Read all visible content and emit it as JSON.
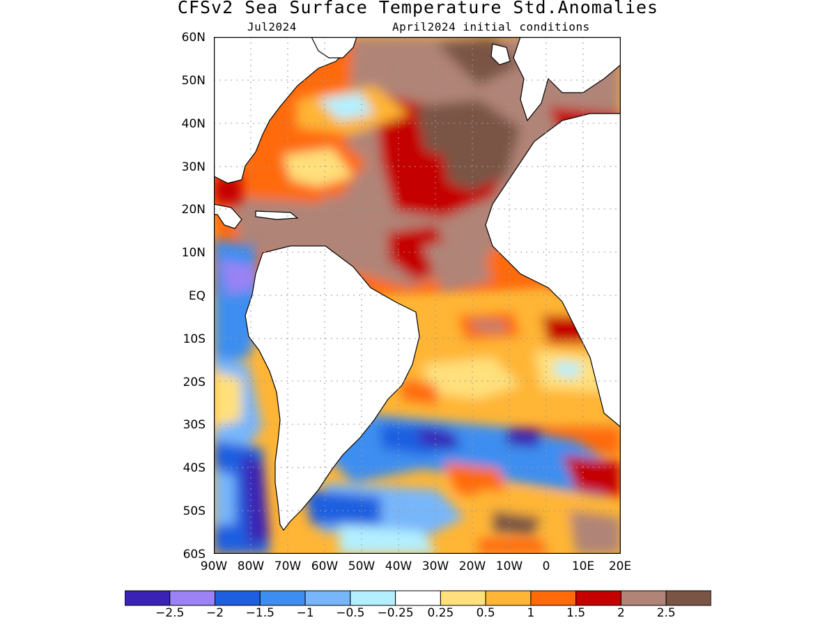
{
  "header": {
    "title": "CFSv2 Sea Surface Temperature Std.Anomalies",
    "valid_month": "Jul2024",
    "initial_conditions": "April2024 initial conditions"
  },
  "axes": {
    "lat_labels": [
      "60N",
      "50N",
      "40N",
      "30N",
      "20N",
      "10N",
      "EQ",
      "10S",
      "20S",
      "30S",
      "40S",
      "50S",
      "60S"
    ],
    "lon_labels": [
      "90W",
      "80W",
      "70W",
      "60W",
      "50W",
      "40W",
      "30W",
      "20W",
      "10W",
      "0",
      "10E",
      "20E"
    ]
  },
  "legend": {
    "colors": [
      "#3a22b4",
      "#9b82f5",
      "#1e5fe0",
      "#3d8ef0",
      "#78b6fa",
      "#b3efff",
      "#ffffff",
      "#ffe07c",
      "#ffb535",
      "#ff6a0a",
      "#c50000",
      "#b08477",
      "#7a5445"
    ],
    "labels": [
      "−2.5",
      "−2",
      "−1.5",
      "−1",
      "−0.5",
      "−0.25",
      "0.25",
      "0.5",
      "1",
      "1.5",
      "2",
      "2.5"
    ]
  }
}
